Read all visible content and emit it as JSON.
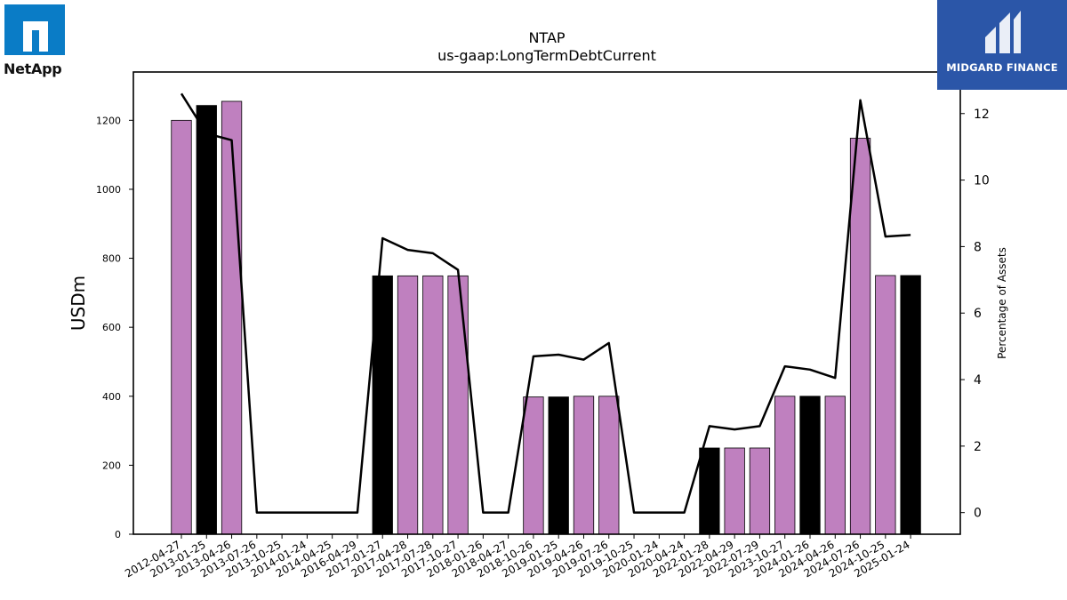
{
  "branding": {
    "left_logo_text": "NetApp",
    "right_logo_text": "MIDGARD FINANCE"
  },
  "chart_data": {
    "type": "bar",
    "title": "NTAP",
    "subtitle": "us-gaap:LongTermDebtCurrent",
    "ylabel": "USDm",
    "y2label": "Percentage of Assets",
    "ylim": [
      0,
      1340
    ],
    "y2lim": [
      -0.65,
      13.25
    ],
    "yticks": [
      0,
      200,
      400,
      600,
      800,
      1000,
      1200
    ],
    "y2ticks": [
      0,
      2,
      4,
      6,
      8,
      10,
      12
    ],
    "categories": [
      "2012-04-27",
      "2013-01-25",
      "2013-04-26",
      "2013-07-26",
      "2013-10-25",
      "2014-01-24",
      "2014-04-25",
      "2016-04-29",
      "2017-01-27",
      "2017-04-28",
      "2017-07-28",
      "2017-10-27",
      "2018-01-26",
      "2018-04-27",
      "2018-10-26",
      "2019-01-25",
      "2019-04-26",
      "2019-07-26",
      "2019-10-25",
      "2020-01-24",
      "2020-04-24",
      "2022-01-28",
      "2022-04-29",
      "2022-07-29",
      "2023-10-27",
      "2024-01-26",
      "2024-04-26",
      "2024-07-26",
      "2024-10-25",
      "2025-01-24"
    ],
    "series": [
      {
        "kind": "bar",
        "values": [
          1200,
          1243,
          1255,
          0,
          0,
          0,
          0,
          0,
          749,
          749,
          749,
          749,
          0,
          0,
          398,
          398,
          400,
          400,
          0,
          0,
          0,
          250,
          250,
          250,
          400,
          400,
          400,
          1148,
          750,
          750
        ],
        "colors": [
          "#bf80bf",
          "#000000",
          "#bf80bf",
          "#bf80bf",
          "#bf80bf",
          "#bf80bf",
          "#bf80bf",
          "#bf80bf",
          "#000000",
          "#bf80bf",
          "#bf80bf",
          "#bf80bf",
          "#bf80bf",
          "#bf80bf",
          "#bf80bf",
          "#000000",
          "#bf80bf",
          "#bf80bf",
          "#bf80bf",
          "#bf80bf",
          "#bf80bf",
          "#000000",
          "#bf80bf",
          "#bf80bf",
          "#bf80bf",
          "#000000",
          "#bf80bf",
          "#bf80bf",
          "#bf80bf",
          "#000000"
        ]
      },
      {
        "kind": "line",
        "axis": "right",
        "values": [
          12.6,
          11.4,
          11.2,
          0,
          0,
          0,
          0,
          0,
          8.25,
          7.9,
          7.8,
          7.3,
          0,
          0,
          4.7,
          4.75,
          4.6,
          5.1,
          0,
          0,
          0,
          2.6,
          2.5,
          2.6,
          4.4,
          4.3,
          4.05,
          12.4,
          8.3,
          8.35
        ]
      }
    ],
    "grid": false
  }
}
